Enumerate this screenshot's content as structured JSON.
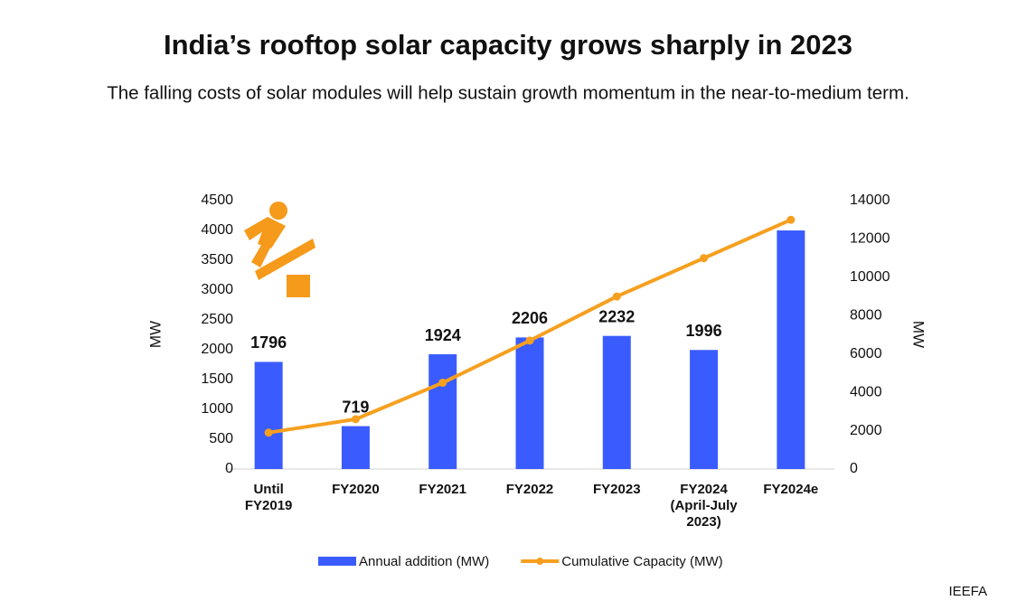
{
  "chart_data": {
    "type": "combo",
    "title": "India’s rooftop solar capacity grows sharply in 2023",
    "subtitle": "The falling costs of solar modules will help sustain growth momentum in the near-to-medium term.",
    "categories": [
      "Until FY2019",
      "FY2020",
      "FY2021",
      "FY2022",
      "FY2023",
      "FY2024 (April-July 2023)",
      "FY2024e"
    ],
    "series": [
      {
        "name": "Annual addition (MW)",
        "type": "bar",
        "color": "#3a5cff",
        "values": [
          1796,
          719,
          1924,
          2206,
          2232,
          1996,
          4000
        ],
        "value_labels": [
          "1796",
          "719",
          "1924",
          "2206",
          "2232",
          "1996",
          null
        ]
      },
      {
        "name": "Cumulative Capacity (MW)",
        "type": "line",
        "axis": "y2",
        "color": "#f6a01f",
        "values": [
          1900,
          2600,
          4500,
          6700,
          9000,
          11000,
          13000
        ]
      }
    ],
    "ylabel": "MW",
    "y2label": "MW",
    "ylim": [
      0,
      4500
    ],
    "yticks": [
      0,
      500,
      1000,
      1500,
      2000,
      2500,
      3000,
      3500,
      4000,
      4500
    ],
    "y2lim": [
      0,
      14000
    ],
    "y2ticks": [
      0,
      2000,
      4000,
      6000,
      8000,
      10000,
      12000,
      14000
    ],
    "grid": false,
    "legend": "bottom",
    "source": "IEEFA"
  }
}
